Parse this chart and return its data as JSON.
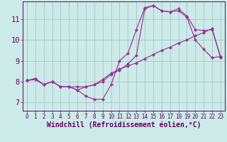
{
  "xlabel": "Windchill (Refroidissement éolien,°C)",
  "ylabel": "",
  "bg_color": "#cceae7",
  "grid_color": "#aacccc",
  "line_color": "#993399",
  "marker": "D",
  "markersize": 2.2,
  "x_ticks": [
    0,
    1,
    2,
    3,
    4,
    5,
    6,
    7,
    8,
    9,
    10,
    11,
    12,
    13,
    14,
    15,
    16,
    17,
    18,
    19,
    20,
    21,
    22,
    23
  ],
  "y_ticks": [
    7,
    8,
    9,
    10,
    11
  ],
  "ylim": [
    6.6,
    11.85
  ],
  "xlim": [
    -0.5,
    23.5
  ],
  "line1_x": [
    0,
    1,
    2,
    3,
    4,
    5,
    6,
    7,
    8,
    9,
    10,
    11,
    12,
    13,
    14,
    15,
    16,
    17,
    18,
    19,
    20,
    21,
    22,
    23
  ],
  "line1_y": [
    8.05,
    8.15,
    7.85,
    8.0,
    7.75,
    7.75,
    7.6,
    7.75,
    7.85,
    8.0,
    8.35,
    8.55,
    8.85,
    9.25,
    11.5,
    11.65,
    11.4,
    11.35,
    11.5,
    11.15,
    10.5,
    10.45,
    10.5,
    9.2
  ],
  "line2_x": [
    0,
    1,
    2,
    3,
    4,
    5,
    6,
    7,
    8,
    9,
    10,
    11,
    12,
    13,
    14,
    15,
    16,
    17,
    18,
    19,
    20,
    21,
    22,
    23
  ],
  "line2_y": [
    8.05,
    8.15,
    7.85,
    8.0,
    7.75,
    7.75,
    7.6,
    7.3,
    7.15,
    7.15,
    7.85,
    9.0,
    9.35,
    10.5,
    11.55,
    11.65,
    11.4,
    11.35,
    11.4,
    11.1,
    10.0,
    9.55,
    9.15,
    9.2
  ],
  "line3_x": [
    0,
    1,
    2,
    3,
    4,
    5,
    6,
    7,
    8,
    9,
    10,
    11,
    12,
    13,
    14,
    15,
    16,
    17,
    18,
    19,
    20,
    21,
    22,
    23
  ],
  "line3_y": [
    8.05,
    8.1,
    7.85,
    8.0,
    7.75,
    7.75,
    7.75,
    7.75,
    7.85,
    8.1,
    8.4,
    8.6,
    8.75,
    8.9,
    9.1,
    9.3,
    9.5,
    9.65,
    9.85,
    10.0,
    10.2,
    10.35,
    10.55,
    9.15
  ],
  "tick_color": "#660066",
  "xlabel_color": "#660066",
  "tick_fontsize_x": 5.5,
  "tick_fontsize_y": 7.5,
  "xlabel_fontsize": 7.0
}
